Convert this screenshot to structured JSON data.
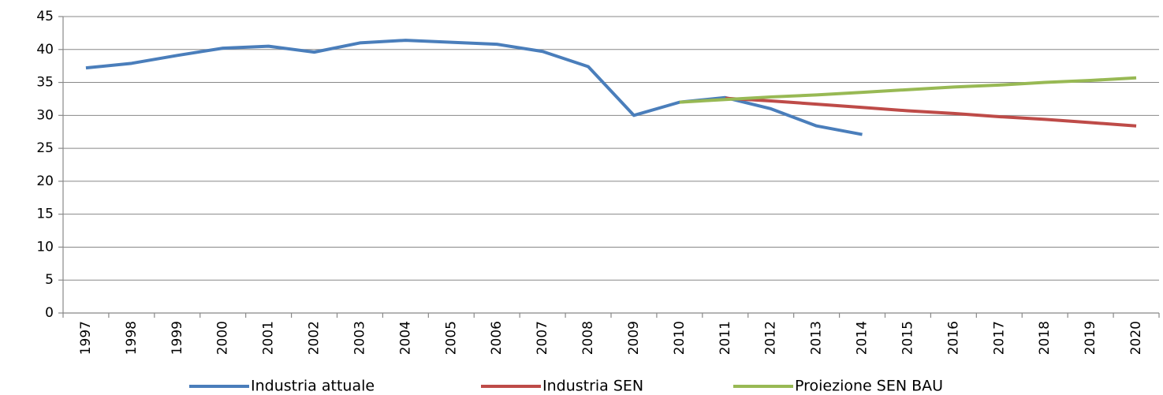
{
  "chart_data": {
    "type": "line",
    "categories": [
      "1997",
      "1998",
      "1999",
      "2000",
      "2001",
      "2002",
      "2003",
      "2004",
      "2005",
      "2006",
      "2007",
      "2008",
      "2009",
      "2010",
      "2011",
      "2012",
      "2013",
      "2014",
      "2015",
      "2016",
      "2017",
      "2018",
      "2019",
      "2020"
    ],
    "series": [
      {
        "name": "Industria attuale",
        "color": "#4a7ebb",
        "values": [
          37.2,
          37.9,
          39.1,
          40.2,
          40.5,
          39.6,
          41.0,
          41.4,
          41.1,
          40.8,
          39.7,
          37.4,
          30.0,
          32.0,
          32.7,
          31.0,
          28.4,
          27.1,
          null,
          null,
          null,
          null,
          null,
          null
        ]
      },
      {
        "name": "Industria SEN",
        "color": "#be4b48",
        "values": [
          null,
          null,
          null,
          null,
          null,
          null,
          null,
          null,
          null,
          null,
          null,
          null,
          null,
          null,
          32.6,
          32.2,
          31.7,
          31.2,
          30.7,
          30.3,
          29.8,
          29.4,
          28.9,
          28.4
        ]
      },
      {
        "name": "Proiezione SEN BAU",
        "color": "#98b954",
        "values": [
          null,
          null,
          null,
          null,
          null,
          null,
          null,
          null,
          null,
          null,
          null,
          null,
          null,
          32.0,
          32.4,
          32.8,
          33.1,
          33.5,
          33.9,
          34.3,
          34.6,
          35.0,
          35.3,
          35.7
        ]
      }
    ],
    "ylim": [
      0,
      45
    ],
    "yticks": [
      0,
      5,
      10,
      15,
      20,
      25,
      30,
      35,
      40,
      45
    ],
    "grid": true,
    "legend": "bottom"
  }
}
